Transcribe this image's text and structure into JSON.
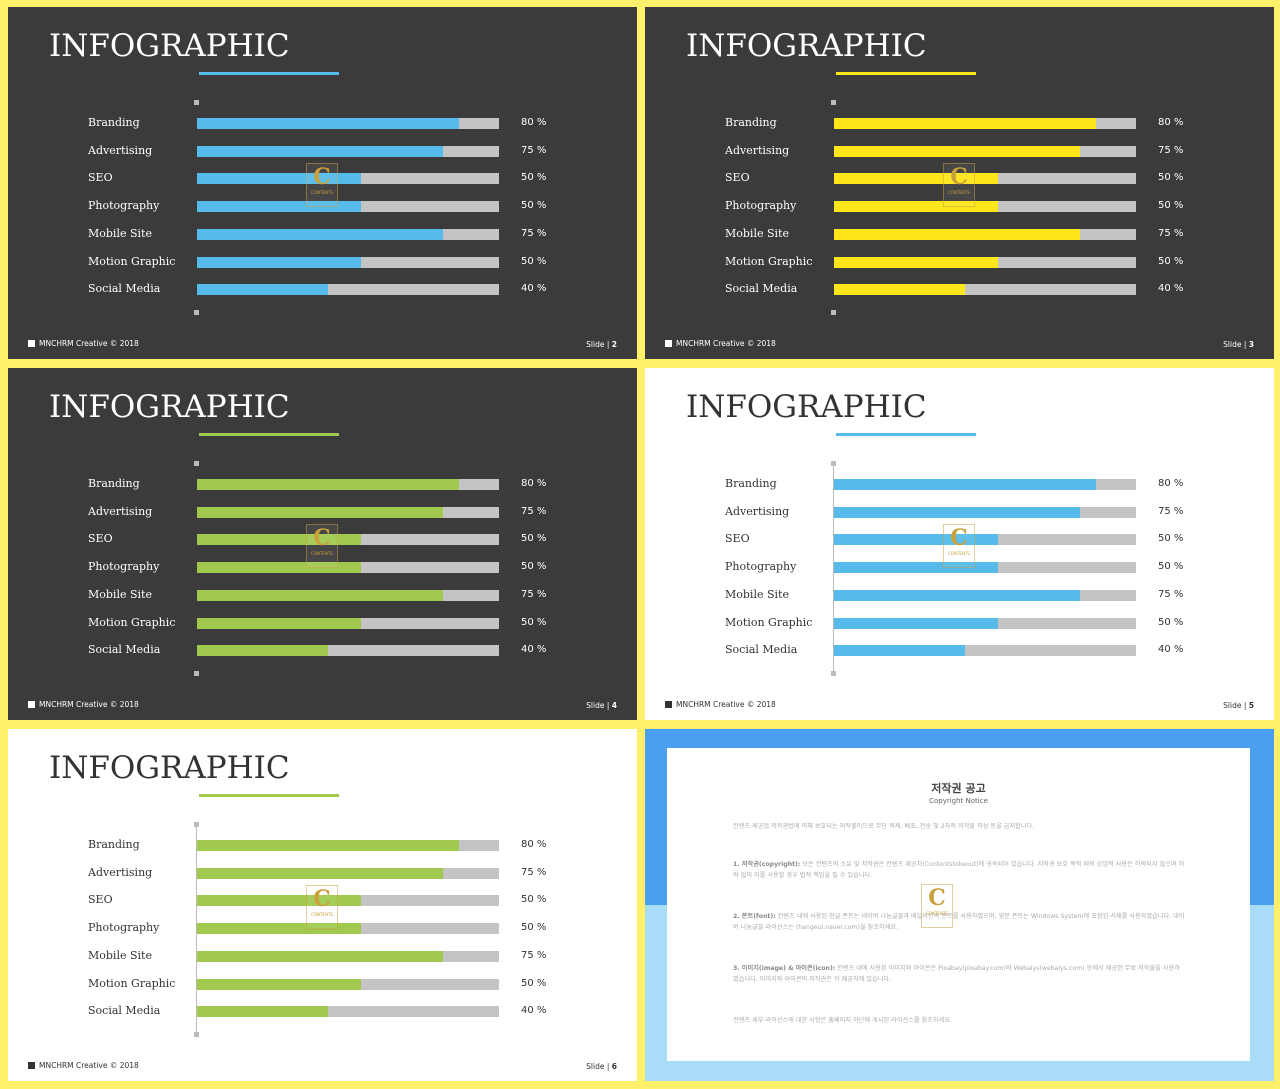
{
  "slides": [
    {
      "title": "INFOGRAPHIC",
      "footer": "MNCHRM Creative © 2018",
      "slide_label": "Slide | ",
      "slide_no": "2",
      "theme": "dark",
      "accent": "#56bbea"
    },
    {
      "title": "INFOGRAPHIC",
      "footer": "MNCHRM Creative © 2018",
      "slide_label": "Slide | ",
      "slide_no": "3",
      "theme": "dark",
      "accent": "#ffe61a"
    },
    {
      "title": "INFOGRAPHIC",
      "footer": "MNCHRM Creative © 2018",
      "slide_label": "Slide | ",
      "slide_no": "4",
      "theme": "dark",
      "accent": "#a1c950"
    },
    {
      "title": "INFOGRAPHIC",
      "footer": "MNCHRM Creative © 2018",
      "slide_label": "Slide | ",
      "slide_no": "5",
      "theme": "light",
      "accent": "#56bbea"
    },
    {
      "title": "INFOGRAPHIC",
      "footer": "MNCHRM Creative © 2018",
      "slide_label": "Slide | ",
      "slide_no": "6",
      "theme": "light",
      "accent": "#a1c950"
    }
  ],
  "chart_data": {
    "type": "bar",
    "categories": [
      "Branding",
      "Advertising",
      "SEO",
      "Photography",
      "Mobile Site",
      "Motion Graphic",
      "Social Media"
    ],
    "values": [
      80,
      75,
      50,
      50,
      75,
      50,
      40
    ],
    "value_labels": [
      "80 %",
      "75 %",
      "50 %",
      "50 %",
      "75 %",
      "50 %",
      "40 %"
    ],
    "ylim": [
      0,
      100
    ]
  },
  "logo": {
    "letter": "C",
    "text": "CONTENTS"
  },
  "copyright": {
    "title": "저작권 공고",
    "subtitle": "Copyright Notice",
    "p1": "컨텐츠 제공업 저작권법에 의해 보호되는 저작물이므로 무단 복제, 배포, 전송 및 2차적 저작물 작성 등을 금지합니다.",
    "p2_head": "1. 저작권(copyright):",
    "p2": "모든 컨텐츠의 소유 및 저작권은 컨텐츠 제공자(Contentstokeout)에 귀속되어 있습니다. 저작권 보호 목적 외의 상업적 사용은 허락되지 않으며 허락 없이 이를 사용할 경우 법적 책임을 질 수 있습니다.",
    "p3_head": "2. 폰트(font):",
    "p3": "컨텐츠 내에 사용된 한글 폰트는 네이버 나눔글꼴과 배달의민족 폰트를 사용하였으며, 영문 폰트는 Windows System에 포함된 서체를 사용하였습니다. 네이버 나눔글꼴 라이선스는 (hangeul.naver.com)을 참조하세요.",
    "p4_head": "3. 이미지(image) & 아이콘(icon):",
    "p4": "컨텐츠 내에 사용된 이미지와 아이콘은 Pixabay(pixabay.com)와 Webalys(webalys.com) 등에서 제공한 무료 저작물을 사용하였습니다. 이미지와 아이콘의 저작권은 각 제공처에 있습니다.",
    "p5": "컨텐츠 세부 라이선스에 대한 사항은 홈페이지 하단에 게시된 라이선스를 참조하세요."
  }
}
